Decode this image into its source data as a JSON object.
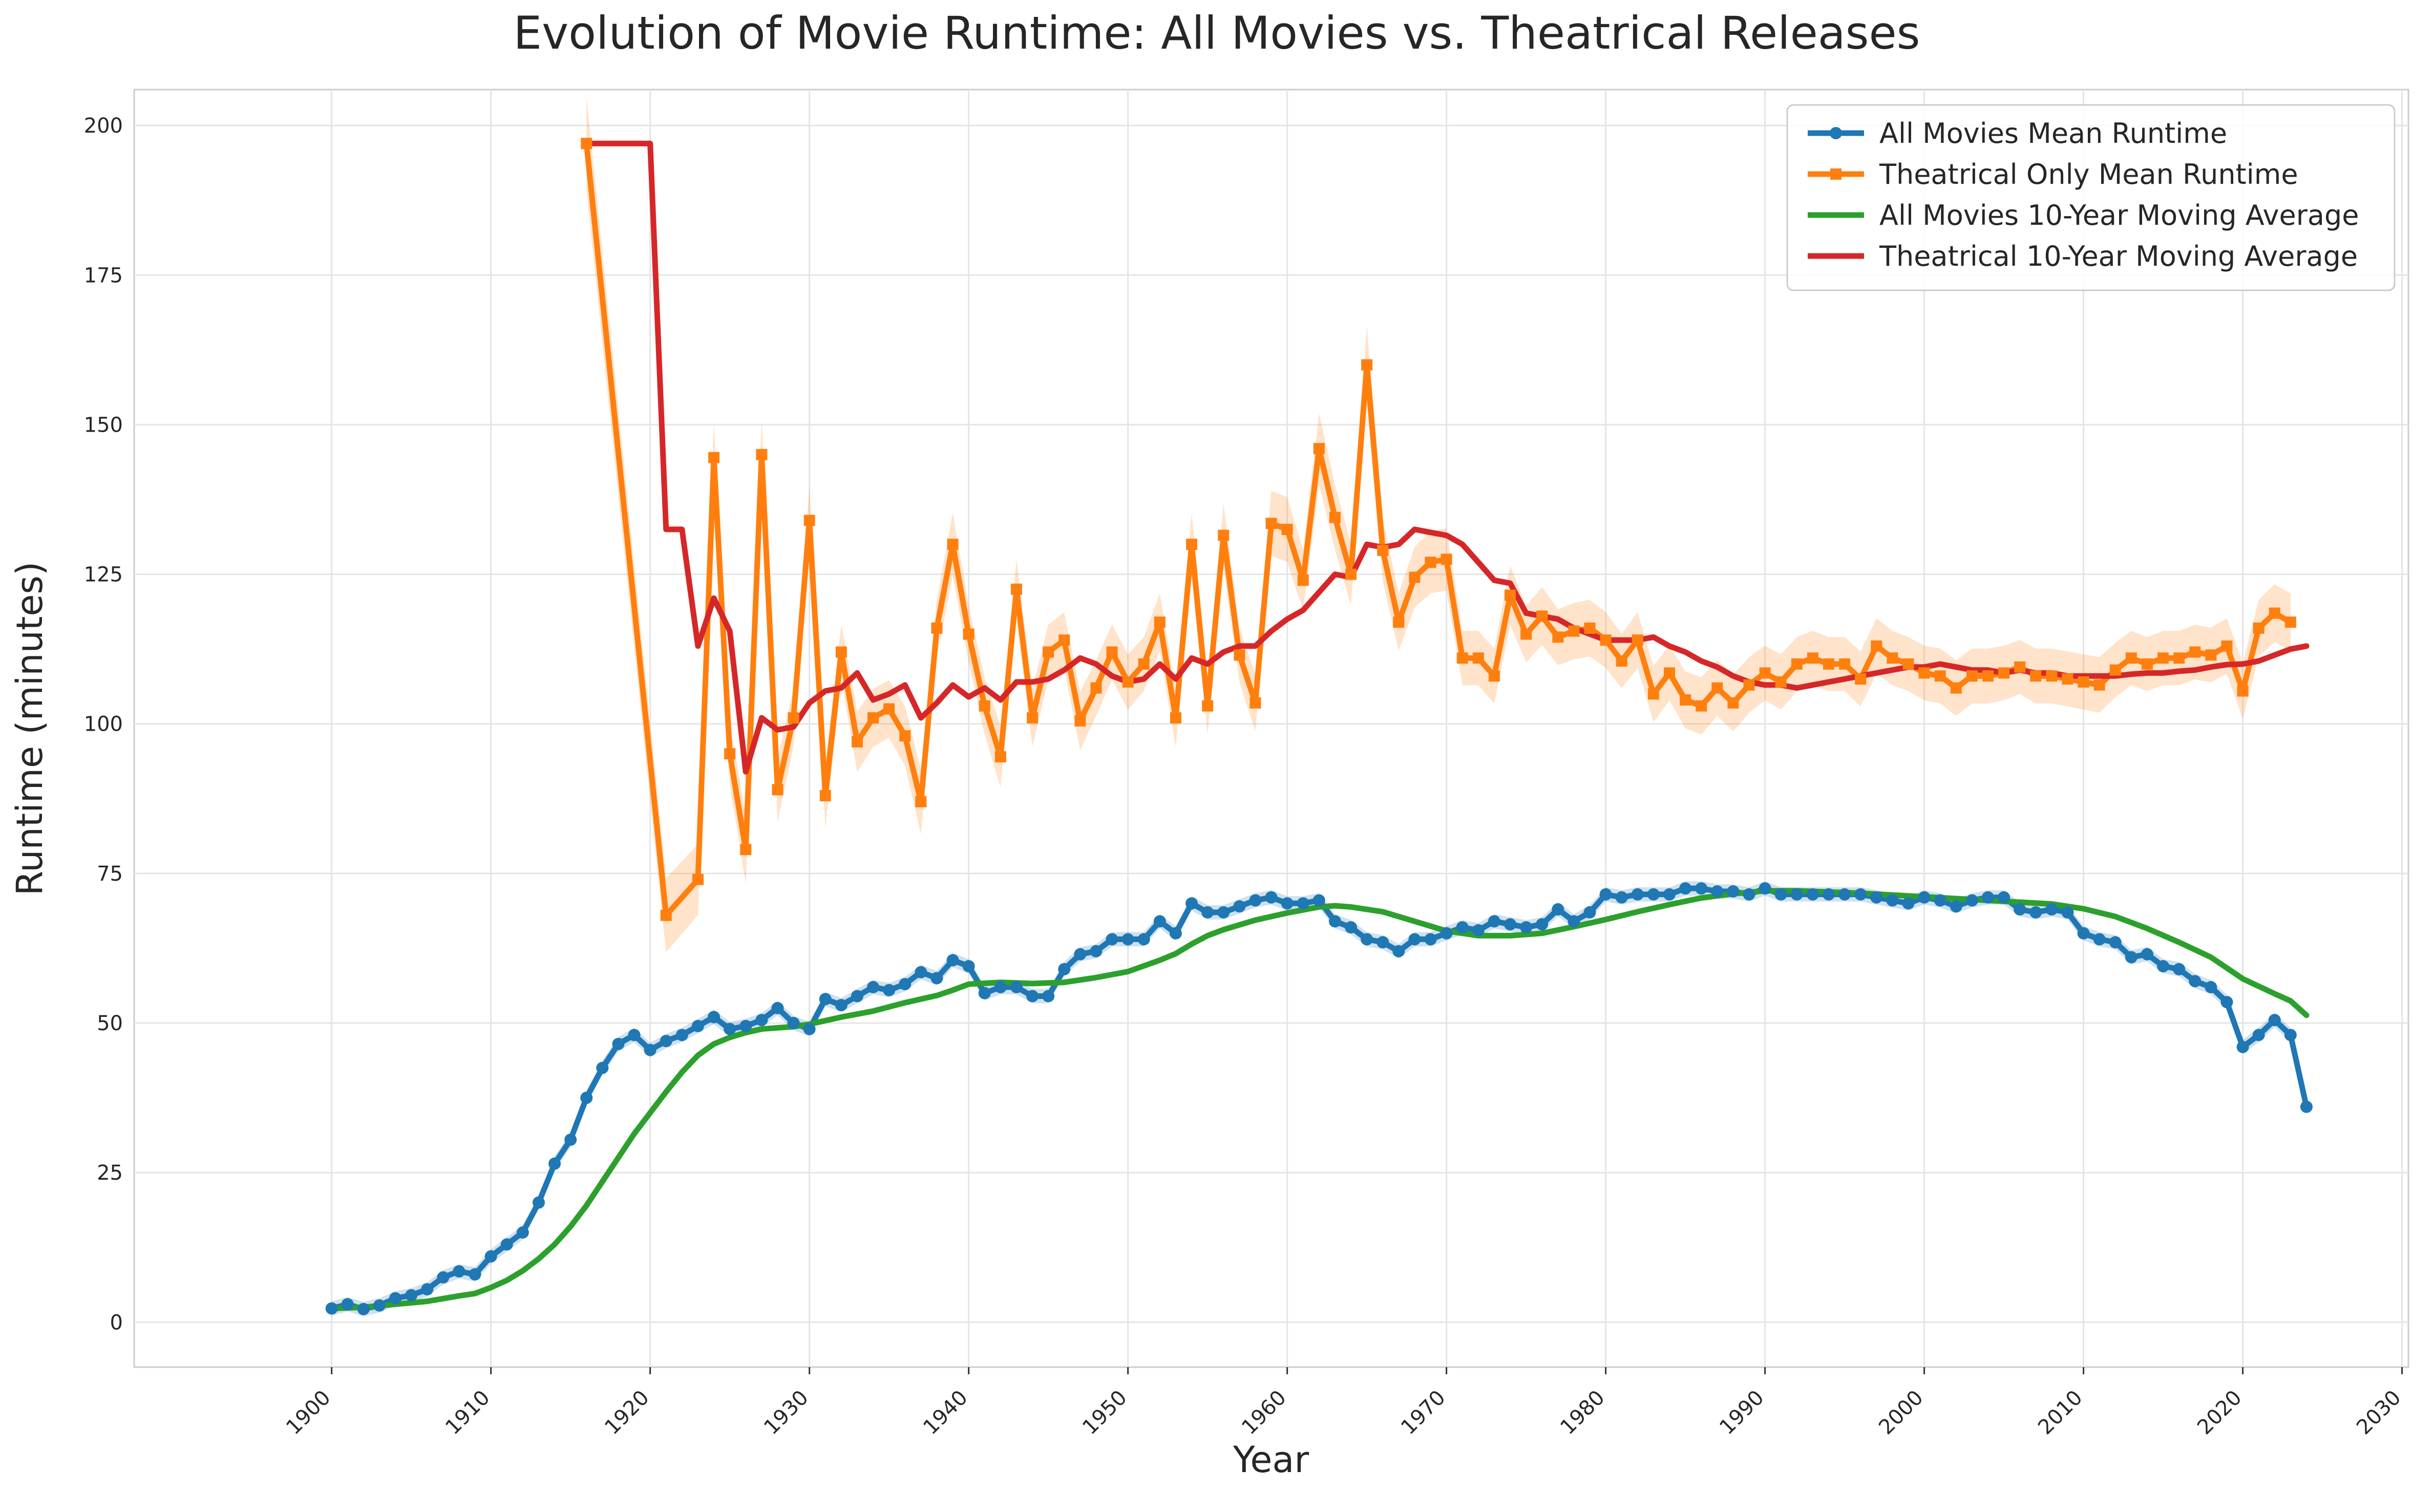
{
  "chart_data": {
    "type": "line",
    "title": "Evolution of Movie Runtime: All Movies vs. Theatrical Releases",
    "xlabel": "Year",
    "ylabel": "Runtime (minutes)",
    "xlim": [
      1887.6,
      2030.4
    ],
    "ylim": [
      -7.5,
      206
    ],
    "xticks": [
      1900,
      1910,
      1920,
      1930,
      1940,
      1950,
      1960,
      1970,
      1980,
      1990,
      2000,
      2010,
      2020,
      2030
    ],
    "yticks": [
      0,
      25,
      50,
      75,
      100,
      125,
      150,
      175,
      200
    ],
    "grid": true,
    "legend_position": "top-right",
    "series": [
      {
        "name": "All Movies Mean Runtime",
        "color": "#1f77b4",
        "marker": "circle",
        "band": true,
        "x": [
          1900,
          1901,
          1902,
          1903,
          1904,
          1905,
          1906,
          1907,
          1908,
          1909,
          1910,
          1911,
          1912,
          1913,
          1914,
          1915,
          1916,
          1917,
          1918,
          1919,
          1920,
          1921,
          1922,
          1923,
          1924,
          1925,
          1926,
          1927,
          1928,
          1929,
          1930,
          1931,
          1932,
          1933,
          1934,
          1935,
          1936,
          1937,
          1938,
          1939,
          1940,
          1941,
          1942,
          1943,
          1944,
          1945,
          1946,
          1947,
          1948,
          1949,
          1950,
          1951,
          1952,
          1953,
          1954,
          1955,
          1956,
          1957,
          1958,
          1959,
          1960,
          1961,
          1962,
          1963,
          1964,
          1965,
          1966,
          1967,
          1968,
          1969,
          1970,
          1971,
          1972,
          1973,
          1974,
          1975,
          1976,
          1977,
          1978,
          1979,
          1980,
          1981,
          1982,
          1983,
          1984,
          1985,
          1986,
          1987,
          1988,
          1989,
          1990,
          1991,
          1992,
          1993,
          1994,
          1995,
          1996,
          1997,
          1998,
          1999,
          2000,
          2001,
          2002,
          2003,
          2004,
          2005,
          2006,
          2007,
          2008,
          2009,
          2010,
          2011,
          2012,
          2013,
          2014,
          2015,
          2016,
          2017,
          2018,
          2019,
          2020,
          2021,
          2022,
          2023,
          2024
        ],
        "y": [
          2.3,
          3,
          2.2,
          2.8,
          4,
          4.5,
          5.5,
          7.5,
          8.5,
          8,
          11,
          13,
          15,
          20,
          26.5,
          30.5,
          37.5,
          42.5,
          46.5,
          48,
          45.5,
          47,
          48,
          49.5,
          51,
          49,
          49.5,
          50.5,
          52.5,
          50,
          49,
          54,
          53,
          54.5,
          56,
          55.5,
          56.5,
          58.5,
          57.5,
          60.5,
          59.5,
          55,
          56,
          56,
          54.5,
          54.5,
          59,
          61.5,
          62,
          64,
          64,
          64,
          67,
          65,
          70,
          68.5,
          68.5,
          69.5,
          70.5,
          71,
          70,
          70,
          70.5,
          67,
          66,
          64,
          63.5,
          62,
          64,
          64,
          65,
          66,
          65.5,
          67,
          66.5,
          66,
          66.5,
          69,
          67,
          68.5,
          71.5,
          71,
          71.5,
          71.5,
          71.5,
          72.5,
          72.5,
          72,
          72,
          71.5,
          72.5,
          71.5,
          71.5,
          71.5,
          71.5,
          71.5,
          71.5,
          71,
          70.5,
          70,
          71,
          70.5,
          69.5,
          70.5,
          71,
          71,
          69,
          68.5,
          69,
          68.5,
          65,
          64,
          63.5,
          61,
          61.5,
          59.5,
          59,
          57,
          56,
          53.5,
          46,
          48,
          50.5,
          48,
          36
        ]
      },
      {
        "name": "Theatrical Only Mean Runtime",
        "color": "#ff7f0e",
        "marker": "square",
        "band": true,
        "x": [
          1916,
          1921,
          1923,
          1924,
          1925,
          1926,
          1927,
          1928,
          1929,
          1930,
          1931,
          1932,
          1933,
          1934,
          1935,
          1936,
          1937,
          1938,
          1939,
          1940,
          1941,
          1942,
          1943,
          1944,
          1945,
          1946,
          1947,
          1948,
          1949,
          1950,
          1951,
          1952,
          1953,
          1954,
          1955,
          1956,
          1957,
          1958,
          1959,
          1960,
          1961,
          1962,
          1963,
          1964,
          1965,
          1966,
          1967,
          1968,
          1969,
          1970,
          1971,
          1972,
          1973,
          1974,
          1975,
          1976,
          1977,
          1978,
          1979,
          1980,
          1981,
          1982,
          1983,
          1984,
          1985,
          1986,
          1987,
          1988,
          1989,
          1990,
          1991,
          1992,
          1993,
          1994,
          1995,
          1996,
          1997,
          1998,
          1999,
          2000,
          2001,
          2002,
          2003,
          2004,
          2005,
          2006,
          2007,
          2008,
          2009,
          2010,
          2011,
          2012,
          2013,
          2014,
          2015,
          2016,
          2017,
          2018,
          2019,
          2020,
          2021,
          2022,
          2023
        ],
        "y": [
          197,
          68,
          74,
          144.5,
          95,
          79,
          145,
          89,
          101,
          134,
          88,
          112,
          97,
          101,
          102.5,
          98,
          87,
          116,
          130,
          115,
          103,
          94.5,
          122.5,
          101,
          112,
          114,
          100.5,
          106,
          112,
          107,
          110,
          117,
          101,
          130,
          103,
          131.5,
          111.5,
          103.5,
          133.5,
          132.5,
          124,
          146,
          134.5,
          125,
          160,
          129,
          117,
          124.5,
          127,
          127.5,
          111,
          111,
          108,
          121.5,
          115,
          118,
          114.5,
          115.5,
          116,
          114,
          110.5,
          114,
          105,
          108.5,
          104,
          103,
          106,
          103.5,
          106.5,
          108.5,
          107,
          110,
          111,
          110,
          110,
          107.5,
          113,
          111,
          110,
          108.5,
          108,
          106,
          108,
          108,
          108.5,
          109.5,
          108,
          108,
          107.5,
          107,
          106.5,
          109,
          111,
          110,
          111,
          111,
          112,
          111.5,
          113,
          105.5,
          116,
          118.5,
          117
        ]
      },
      {
        "name": "All Movies 10-Year Moving Average",
        "color": "#2ca02c",
        "marker": "none",
        "band": false,
        "x": [
          1900,
          1902,
          1904,
          1906,
          1908,
          1909,
          1910,
          1911,
          1912,
          1913,
          1914,
          1915,
          1916,
          1917,
          1918,
          1919,
          1920,
          1921,
          1922,
          1923,
          1924,
          1925,
          1926,
          1927,
          1928,
          1929,
          1930,
          1932,
          1934,
          1936,
          1937,
          1938,
          1939,
          1940,
          1942,
          1944,
          1946,
          1948,
          1950,
          1952,
          1953,
          1954,
          1955,
          1956,
          1958,
          1960,
          1962,
          1963,
          1964,
          1966,
          1968,
          1970,
          1972,
          1974,
          1976,
          1978,
          1980,
          1982,
          1984,
          1986,
          1988,
          1990,
          1992,
          1994,
          1996,
          1998,
          2000,
          2002,
          2004,
          2006,
          2008,
          2010,
          2012,
          2014,
          2016,
          2018,
          2020,
          2022,
          2023,
          2024
        ],
        "y": [
          2.3,
          2.5,
          3,
          3.5,
          4.4,
          4.8,
          5.8,
          7,
          8.6,
          10.6,
          13,
          16,
          19.5,
          23.5,
          27.5,
          31.5,
          35,
          38.5,
          41.8,
          44.6,
          46.5,
          47.6,
          48.4,
          49,
          49.2,
          49.4,
          49.8,
          51,
          52,
          53.4,
          54,
          54.6,
          55.5,
          56.5,
          56.8,
          56.6,
          56.8,
          57.6,
          58.6,
          60.5,
          61.6,
          63.2,
          64.6,
          65.6,
          67.2,
          68.4,
          69.4,
          69.6,
          69.4,
          68.6,
          67,
          65.4,
          64.6,
          64.6,
          65,
          66.1,
          67.3,
          68.6,
          69.8,
          70.9,
          71.6,
          72.1,
          72.1,
          71.9,
          71.7,
          71.4,
          71.1,
          70.8,
          70.5,
          70.2,
          69.9,
          69.1,
          67.8,
          65.8,
          63.5,
          61,
          57.4,
          54.9,
          53.7,
          51.3
        ]
      },
      {
        "name": "Theatrical 10-Year Moving Average",
        "color": "#d62728",
        "marker": "none",
        "band": false,
        "x": [
          1916,
          1917,
          1918,
          1919,
          1920,
          1921,
          1922,
          1923,
          1924,
          1925,
          1926,
          1927,
          1928,
          1929,
          1930,
          1931,
          1932,
          1933,
          1934,
          1935,
          1936,
          1937,
          1938,
          1939,
          1940,
          1941,
          1942,
          1943,
          1944,
          1945,
          1946,
          1947,
          1948,
          1949,
          1950,
          1951,
          1952,
          1953,
          1954,
          1955,
          1956,
          1957,
          1958,
          1959,
          1960,
          1961,
          1962,
          1963,
          1964,
          1965,
          1966,
          1967,
          1968,
          1969,
          1970,
          1971,
          1972,
          1973,
          1974,
          1975,
          1976,
          1977,
          1978,
          1979,
          1980,
          1981,
          1982,
          1983,
          1984,
          1985,
          1986,
          1987,
          1988,
          1989,
          1990,
          1991,
          1992,
          1993,
          1994,
          1995,
          1996,
          1997,
          1998,
          1999,
          2000,
          2001,
          2002,
          2003,
          2004,
          2005,
          2006,
          2007,
          2008,
          2009,
          2010,
          2011,
          2012,
          2013,
          2014,
          2015,
          2016,
          2017,
          2018,
          2019,
          2020,
          2021,
          2022,
          2023,
          2024
        ],
        "y": [
          197,
          197,
          197,
          197,
          197,
          132.5,
          132.5,
          113,
          121,
          115.5,
          92,
          101,
          99,
          99.5,
          103.5,
          105.5,
          106,
          108.5,
          104,
          105,
          106.5,
          101,
          103.5,
          106.5,
          104.5,
          106,
          104,
          107,
          107,
          107.5,
          109,
          111,
          110,
          108,
          107,
          107.5,
          110,
          107.5,
          111,
          110,
          112,
          113,
          113,
          115.5,
          117.5,
          119,
          122,
          125,
          124.5,
          130,
          129.5,
          130,
          132.5,
          132,
          131.5,
          130,
          127,
          124,
          123.5,
          118.5,
          118,
          117.5,
          116,
          115,
          114,
          114,
          114,
          114.5,
          113,
          112,
          110.5,
          109.5,
          108,
          107,
          106.5,
          106.5,
          106,
          106.5,
          107,
          107.5,
          108,
          108.5,
          109,
          109.5,
          109.5,
          110,
          109.5,
          109,
          109,
          108.5,
          109,
          108.5,
          108.5,
          108,
          108,
          108,
          108,
          108.3,
          108.5,
          108.5,
          108.8,
          109,
          109.5,
          109.9,
          110,
          110.5,
          111.5,
          112.5,
          113
        ]
      }
    ]
  }
}
